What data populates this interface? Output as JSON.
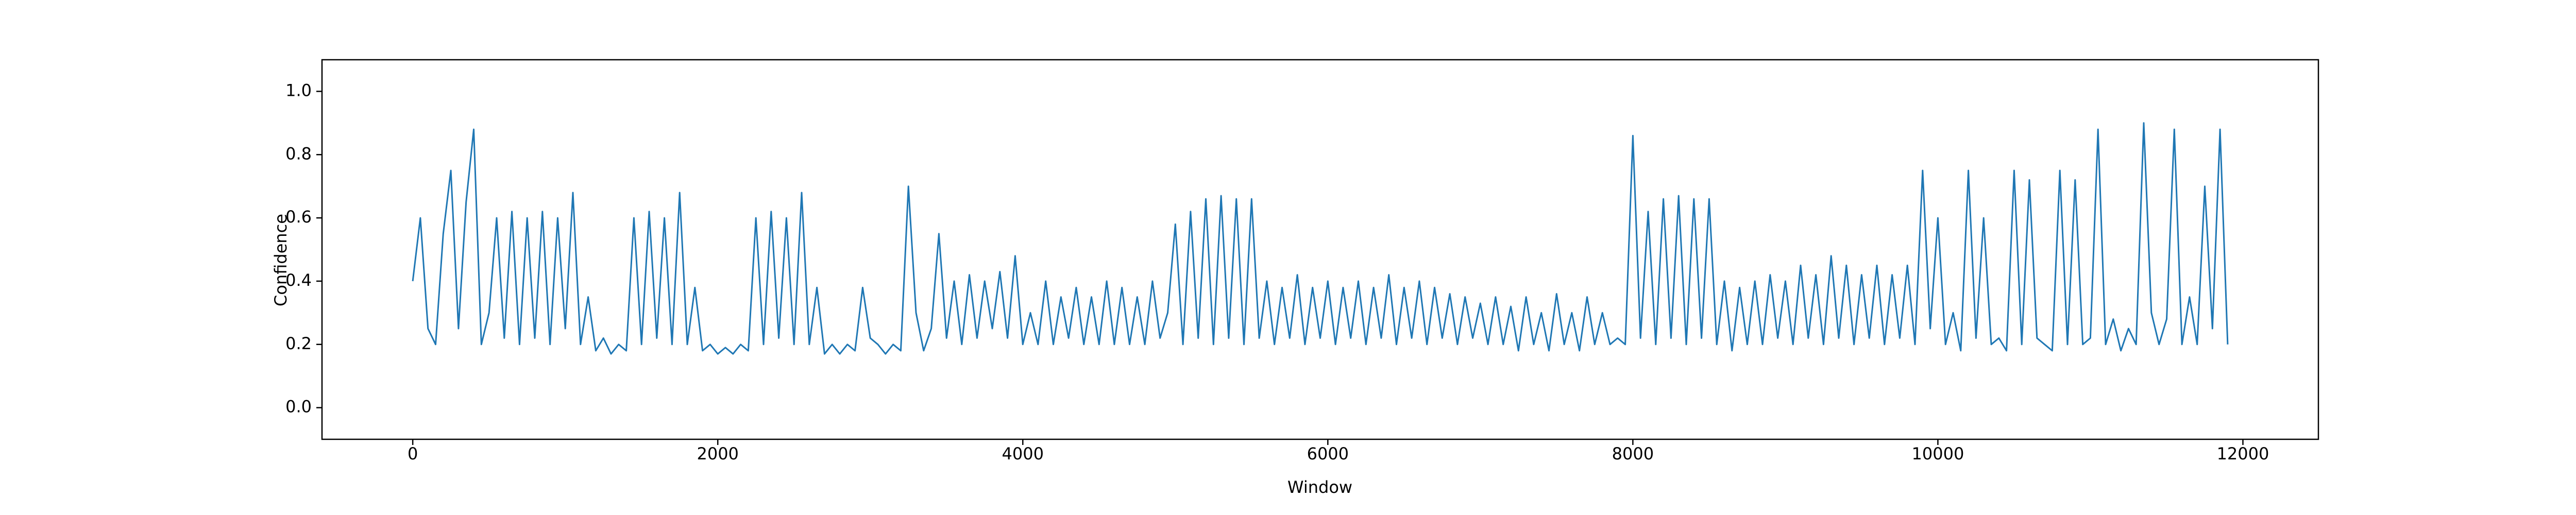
{
  "chart_data": {
    "type": "line",
    "xlabel": "Window",
    "ylabel": "Confidence",
    "color": "#1f77b4",
    "xlim": [
      -595,
      12495
    ],
    "ylim": [
      -0.1,
      1.1
    ],
    "xticks": [
      0,
      2000,
      4000,
      6000,
      8000,
      10000,
      12000
    ],
    "yticks": [
      {
        "value": 0,
        "label": "0.0"
      },
      0.2,
      0.4,
      0.6,
      0.8,
      {
        "value": 1,
        "label": "1.0"
      }
    ],
    "x": [
      0,
      50,
      100,
      150,
      200,
      250,
      300,
      350,
      400,
      450,
      500,
      550,
      600,
      650,
      700,
      750,
      800,
      850,
      900,
      950,
      1000,
      1050,
      1100,
      1150,
      1200,
      1250,
      1300,
      1350,
      1400,
      1450,
      1500,
      1550,
      1600,
      1650,
      1700,
      1750,
      1800,
      1850,
      1900,
      1950,
      2000,
      2050,
      2100,
      2150,
      2200,
      2250,
      2300,
      2350,
      2400,
      2450,
      2500,
      2550,
      2600,
      2650,
      2700,
      2750,
      2800,
      2850,
      2900,
      2950,
      3000,
      3050,
      3100,
      3150,
      3200,
      3250,
      3300,
      3350,
      3400,
      3450,
      3500,
      3550,
      3600,
      3650,
      3700,
      3750,
      3800,
      3850,
      3900,
      3950,
      4000,
      4050,
      4100,
      4150,
      4200,
      4250,
      4300,
      4350,
      4400,
      4450,
      4500,
      4550,
      4600,
      4650,
      4700,
      4750,
      4800,
      4850,
      4900,
      4950,
      5000,
      5050,
      5100,
      5150,
      5200,
      5250,
      5300,
      5350,
      5400,
      5450,
      5500,
      5550,
      5600,
      5650,
      5700,
      5750,
      5800,
      5850,
      5900,
      5950,
      6000,
      6050,
      6100,
      6150,
      6200,
      6250,
      6300,
      6350,
      6400,
      6450,
      6500,
      6550,
      6600,
      6650,
      6700,
      6750,
      6800,
      6850,
      6900,
      6950,
      7000,
      7050,
      7100,
      7150,
      7200,
      7250,
      7300,
      7350,
      7400,
      7450,
      7500,
      7550,
      7600,
      7650,
      7700,
      7750,
      7800,
      7850,
      7900,
      7950,
      8000,
      8050,
      8100,
      8150,
      8200,
      8250,
      8300,
      8350,
      8400,
      8450,
      8500,
      8550,
      8600,
      8650,
      8700,
      8750,
      8800,
      8850,
      8900,
      8950,
      9000,
      9050,
      9100,
      9150,
      9200,
      9250,
      9300,
      9350,
      9400,
      9450,
      9500,
      9550,
      9600,
      9650,
      9700,
      9750,
      9800,
      9850,
      9900,
      9950,
      10000,
      10050,
      10100,
      10150,
      10200,
      10250,
      10300,
      10350,
      10400,
      10450,
      10500,
      10550,
      10600,
      10650,
      10700,
      10750,
      10800,
      10850,
      10900,
      10950,
      11000,
      11050,
      11100,
      11150,
      11200,
      11250,
      11300,
      11350,
      11400,
      11450,
      11500,
      11550,
      11600,
      11650,
      11700,
      11750,
      11800,
      11850,
      11900
    ],
    "values": [
      0.4,
      0.6,
      0.25,
      0.2,
      0.55,
      0.75,
      0.25,
      0.65,
      0.88,
      0.2,
      0.3,
      0.6,
      0.22,
      0.62,
      0.2,
      0.6,
      0.22,
      0.62,
      0.2,
      0.6,
      0.25,
      0.68,
      0.2,
      0.35,
      0.18,
      0.22,
      0.17,
      0.2,
      0.18,
      0.6,
      0.2,
      0.62,
      0.22,
      0.6,
      0.2,
      0.68,
      0.2,
      0.38,
      0.18,
      0.2,
      0.17,
      0.19,
      0.17,
      0.2,
      0.18,
      0.6,
      0.2,
      0.62,
      0.22,
      0.6,
      0.2,
      0.68,
      0.2,
      0.38,
      0.17,
      0.2,
      0.17,
      0.2,
      0.18,
      0.38,
      0.22,
      0.2,
      0.17,
      0.2,
      0.18,
      0.7,
      0.3,
      0.18,
      0.25,
      0.55,
      0.22,
      0.4,
      0.2,
      0.42,
      0.22,
      0.4,
      0.25,
      0.43,
      0.22,
      0.48,
      0.2,
      0.3,
      0.2,
      0.4,
      0.2,
      0.35,
      0.22,
      0.38,
      0.2,
      0.35,
      0.2,
      0.4,
      0.2,
      0.38,
      0.2,
      0.35,
      0.2,
      0.4,
      0.22,
      0.3,
      0.58,
      0.2,
      0.62,
      0.22,
      0.66,
      0.2,
      0.67,
      0.22,
      0.66,
      0.2,
      0.66,
      0.22,
      0.4,
      0.2,
      0.38,
      0.22,
      0.42,
      0.2,
      0.38,
      0.22,
      0.4,
      0.2,
      0.38,
      0.22,
      0.4,
      0.2,
      0.38,
      0.22,
      0.42,
      0.2,
      0.38,
      0.22,
      0.4,
      0.2,
      0.38,
      0.22,
      0.36,
      0.2,
      0.35,
      0.22,
      0.33,
      0.2,
      0.35,
      0.2,
      0.32,
      0.18,
      0.35,
      0.2,
      0.3,
      0.18,
      0.36,
      0.2,
      0.3,
      0.18,
      0.35,
      0.2,
      0.3,
      0.2,
      0.22,
      0.2,
      0.86,
      0.22,
      0.62,
      0.2,
      0.66,
      0.22,
      0.67,
      0.2,
      0.66,
      0.22,
      0.66,
      0.2,
      0.4,
      0.18,
      0.38,
      0.2,
      0.4,
      0.2,
      0.42,
      0.22,
      0.4,
      0.2,
      0.45,
      0.22,
      0.42,
      0.2,
      0.48,
      0.22,
      0.45,
      0.2,
      0.42,
      0.22,
      0.45,
      0.2,
      0.42,
      0.22,
      0.45,
      0.2,
      0.75,
      0.25,
      0.6,
      0.2,
      0.3,
      0.18,
      0.75,
      0.22,
      0.6,
      0.2,
      0.22,
      0.18,
      0.75,
      0.2,
      0.72,
      0.22,
      0.2,
      0.18,
      0.75,
      0.2,
      0.72,
      0.2,
      0.22,
      0.88,
      0.2,
      0.28,
      0.18,
      0.25,
      0.2,
      0.9,
      0.3,
      0.2,
      0.28,
      0.88,
      0.2,
      0.35,
      0.2,
      0.7,
      0.25,
      0.88,
      0.2
    ]
  }
}
